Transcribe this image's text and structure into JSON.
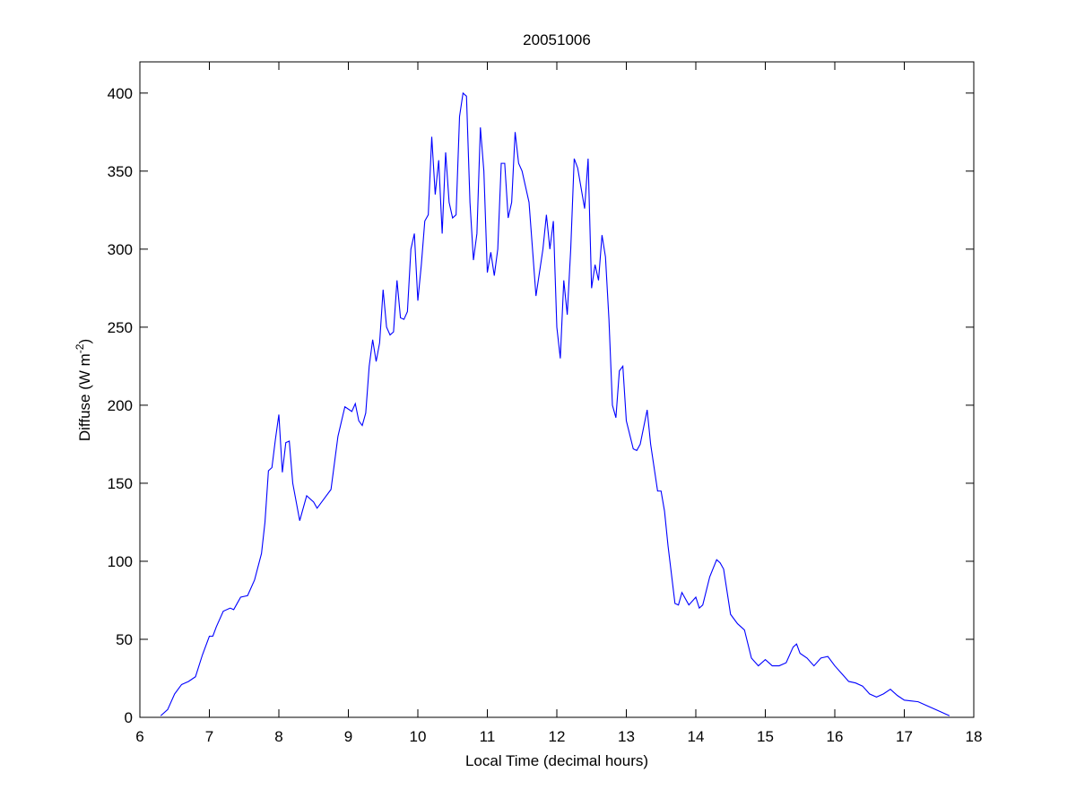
{
  "chart_data": {
    "type": "line",
    "title": "20051006",
    "x_label": "Local Time (decimal hours)",
    "y_label": {
      "text": "Diffuse (W m",
      "superscript": "-2",
      "suffix": ")"
    },
    "xlim": [
      6,
      18
    ],
    "ylim": [
      0,
      420
    ],
    "xticks": [
      6,
      7,
      8,
      9,
      10,
      11,
      12,
      13,
      14,
      15,
      16,
      17,
      18
    ],
    "yticks": [
      0,
      50,
      100,
      150,
      200,
      250,
      300,
      350,
      400
    ],
    "grid": false,
    "box": true,
    "x": [
      6.3,
      6.4,
      6.5,
      6.6,
      6.7,
      6.8,
      6.9,
      7.0,
      7.05,
      7.1,
      7.2,
      7.3,
      7.35,
      7.4,
      7.45,
      7.55,
      7.65,
      7.75,
      7.8,
      7.85,
      7.9,
      7.95,
      8.0,
      8.05,
      8.1,
      8.15,
      8.2,
      8.3,
      8.4,
      8.5,
      8.55,
      8.65,
      8.75,
      8.85,
      8.95,
      9.05,
      9.1,
      9.15,
      9.2,
      9.25,
      9.3,
      9.35,
      9.4,
      9.45,
      9.5,
      9.55,
      9.6,
      9.65,
      9.7,
      9.75,
      9.8,
      9.85,
      9.9,
      9.95,
      10.0,
      10.05,
      10.1,
      10.15,
      10.2,
      10.25,
      10.3,
      10.35,
      10.4,
      10.45,
      10.5,
      10.55,
      10.6,
      10.65,
      10.7,
      10.75,
      10.8,
      10.85,
      10.9,
      10.95,
      11.0,
      11.05,
      11.1,
      11.15,
      11.2,
      11.25,
      11.3,
      11.35,
      11.4,
      11.45,
      11.5,
      11.55,
      11.6,
      11.7,
      11.8,
      11.85,
      11.9,
      11.95,
      12.0,
      12.05,
      12.1,
      12.15,
      12.2,
      12.25,
      12.3,
      12.4,
      12.45,
      12.5,
      12.55,
      12.6,
      12.65,
      12.7,
      12.75,
      12.8,
      12.85,
      12.9,
      12.95,
      13.0,
      13.1,
      13.15,
      13.2,
      13.3,
      13.35,
      13.45,
      13.5,
      13.55,
      13.6,
      13.7,
      13.75,
      13.8,
      13.9,
      14.0,
      14.05,
      14.1,
      14.2,
      14.3,
      14.35,
      14.4,
      14.5,
      14.6,
      14.7,
      14.8,
      14.9,
      15.0,
      15.05,
      15.1,
      15.2,
      15.3,
      15.4,
      15.45,
      15.5,
      15.6,
      15.7,
      15.8,
      15.9,
      16.0,
      16.1,
      16.2,
      16.3,
      16.4,
      16.5,
      16.6,
      16.7,
      16.8,
      16.9,
      17.0,
      17.2,
      17.3,
      17.5,
      17.65
    ],
    "series": [
      {
        "name": "Diffuse",
        "color": "#0000ff",
        "values": [
          1,
          5,
          15,
          21,
          23,
          26,
          40,
          52,
          52,
          58,
          68,
          70,
          69,
          73,
          77,
          78,
          88,
          105,
          125,
          158,
          160,
          178,
          194,
          157,
          176,
          177,
          150,
          126,
          142,
          138,
          134,
          140,
          146,
          180,
          199,
          196,
          201,
          190,
          187,
          195,
          225,
          242,
          228,
          240,
          274,
          250,
          245,
          247,
          280,
          256,
          255,
          260,
          300,
          310,
          267,
          290,
          318,
          322,
          372,
          335,
          357,
          310,
          362,
          330,
          320,
          322,
          385,
          400,
          398,
          330,
          293,
          310,
          378,
          350,
          285,
          298,
          283,
          300,
          355,
          355,
          320,
          330,
          375,
          355,
          350,
          340,
          330,
          270,
          300,
          322,
          300,
          318,
          250,
          230,
          280,
          258,
          300,
          358,
          352,
          326,
          358,
          275,
          290,
          280,
          309,
          295,
          255,
          200,
          192,
          222,
          225,
          190,
          172,
          171,
          175,
          197,
          175,
          145,
          145,
          132,
          110,
          73,
          72,
          80,
          72,
          77,
          70,
          72,
          90,
          101,
          99,
          95,
          66,
          60,
          56,
          38,
          33,
          37,
          35,
          33,
          33,
          35,
          45,
          47,
          41,
          38,
          33,
          38,
          39,
          33,
          28,
          23,
          22,
          20,
          15,
          13,
          15,
          18,
          14,
          11,
          10,
          8,
          4,
          1
        ]
      }
    ]
  }
}
